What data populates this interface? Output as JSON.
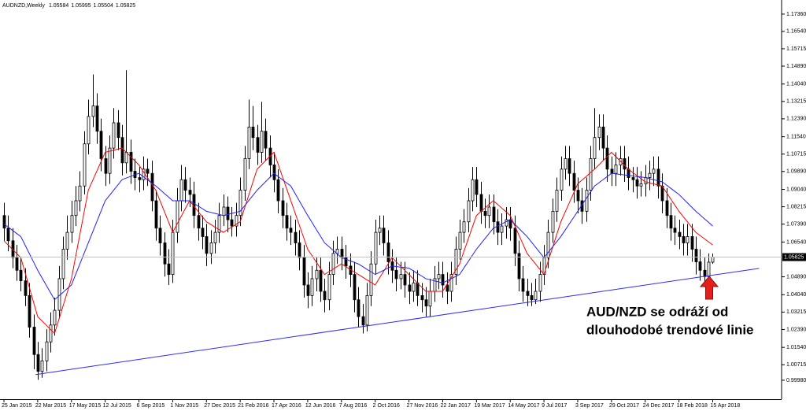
{
  "chart_data": {
    "type": "candlestick",
    "title": "AUDNZD,Weekly",
    "annotation": [
      "AUD/NZD se odráží od",
      "dlouhodobé trendové linie"
    ],
    "ylim": [
      0.9908,
      1.1803
    ],
    "yticks": [
      {
        "value": 1.1736,
        "label": "1.17360"
      },
      {
        "value": 1.1654,
        "label": "1.16540"
      },
      {
        "value": 1.15715,
        "label": "1.15715"
      },
      {
        "value": 1.1489,
        "label": "1.14890"
      },
      {
        "value": 1.1404,
        "label": "1.14040"
      },
      {
        "value": 1.13215,
        "label": "1.13215"
      },
      {
        "value": 1.1239,
        "label": "1.12390"
      },
      {
        "value": 1.1154,
        "label": "1.11540"
      },
      {
        "value": 1.10715,
        "label": "1.10715"
      },
      {
        "value": 1.0989,
        "label": "1.09890"
      },
      {
        "value": 1.0904,
        "label": "1.09040"
      },
      {
        "value": 1.08215,
        "label": "1.08215"
      },
      {
        "value": 1.0739,
        "label": "1.07390"
      },
      {
        "value": 1.0654,
        "label": "1.06540"
      },
      {
        "value": 1.0489,
        "label": "1.04890"
      },
      {
        "value": 1.0404,
        "label": "1.04040"
      },
      {
        "value": 1.03215,
        "label": "1.03215"
      },
      {
        "value": 1.0239,
        "label": "1.02390"
      },
      {
        "value": 1.0154,
        "label": "1.01540"
      },
      {
        "value": 1.00715,
        "label": "1.00715"
      },
      {
        "value": 0.9998,
        "label": "0.99980"
      }
    ],
    "categories": [
      "25 Jan 2015",
      null,
      null,
      null,
      null,
      null,
      null,
      null,
      "22 Mar 2015",
      null,
      null,
      null,
      null,
      null,
      null,
      null,
      "17 May 2015",
      null,
      null,
      null,
      null,
      null,
      null,
      null,
      "12 Jul 2015",
      null,
      null,
      null,
      null,
      null,
      null,
      null,
      "6 Sep 2015",
      null,
      null,
      null,
      null,
      null,
      null,
      null,
      "1 Nov 2015",
      null,
      null,
      null,
      null,
      null,
      null,
      null,
      "27 Dec 2015",
      null,
      null,
      null,
      null,
      null,
      null,
      null,
      "21 Feb 2016",
      null,
      null,
      null,
      null,
      null,
      null,
      null,
      "17 Apr 2016",
      null,
      null,
      null,
      null,
      null,
      null,
      null,
      "12 Jun 2016",
      null,
      null,
      null,
      null,
      null,
      null,
      null,
      "7 Aug 2016",
      null,
      null,
      null,
      null,
      null,
      null,
      null,
      "2 Oct 2016",
      null,
      null,
      null,
      null,
      null,
      null,
      null,
      "27 Nov 2016",
      null,
      null,
      null,
      null,
      null,
      null,
      null,
      "22 Jan 2017",
      null,
      null,
      null,
      null,
      null,
      null,
      null,
      "19 Mar 2017",
      null,
      null,
      null,
      null,
      null,
      null,
      null,
      "14 May 2017",
      null,
      null,
      null,
      null,
      null,
      null,
      null,
      "9 Jul 2017",
      null,
      null,
      null,
      null,
      null,
      null,
      null,
      "3 Sep 2017",
      null,
      null,
      null,
      null,
      null,
      null,
      null,
      "29 Oct 2017",
      null,
      null,
      null,
      null,
      null,
      null,
      null,
      "24 Dec 2017",
      null,
      null,
      null,
      null,
      null,
      null,
      null,
      "18 Feb 2018",
      null,
      null,
      null,
      null,
      null,
      null,
      null,
      "15 Apr 2018"
    ],
    "open": [
      1.078,
      1.072,
      1.066,
      1.058,
      1.052,
      1.047,
      1.04,
      1.025,
      1.012,
      1.004,
      1.009,
      1.018,
      1.026,
      1.033,
      1.048,
      1.062,
      1.07,
      1.078,
      1.085,
      1.092,
      1.112,
      1.125,
      1.13,
      1.118,
      1.105,
      1.098,
      1.11,
      1.122,
      1.115,
      1.103,
      1.108,
      1.099,
      1.096,
      1.095,
      1.1,
      1.098,
      1.085,
      1.072,
      1.065,
      1.055,
      1.05,
      1.07,
      1.085,
      1.095,
      1.09,
      1.088,
      1.078,
      1.072,
      1.068,
      1.06,
      1.065,
      1.07,
      1.078,
      1.082,
      1.076,
      1.073,
      1.078,
      1.09,
      1.105,
      1.12,
      1.115,
      1.108,
      1.118,
      1.11,
      1.102,
      1.095,
      1.085,
      1.078,
      1.072,
      1.07,
      1.065,
      1.058,
      1.045,
      1.04,
      1.048,
      1.052,
      1.042,
      1.038,
      1.05,
      1.06,
      1.062,
      1.058,
      1.054,
      1.05,
      1.038,
      1.03,
      1.026,
      1.04,
      1.055,
      1.07,
      1.072,
      1.065,
      1.056,
      1.052,
      1.048,
      1.05,
      1.045,
      1.042,
      1.046,
      1.04,
      1.038,
      1.035,
      1.042,
      1.048,
      1.05,
      1.045,
      1.042,
      1.05,
      1.062,
      1.07,
      1.075,
      1.085,
      1.095,
      1.088,
      1.08,
      1.078,
      1.082,
      1.075,
      1.07,
      1.073,
      1.076,
      1.072,
      1.06,
      1.048,
      1.042,
      1.04,
      1.038,
      1.042,
      1.05,
      1.058,
      1.07,
      1.08,
      1.09,
      1.1,
      1.105,
      1.098,
      1.09,
      1.085,
      1.08,
      1.09,
      1.105,
      1.115,
      1.12,
      1.11,
      1.1,
      1.098,
      1.102,
      1.105,
      1.1,
      1.096,
      1.095,
      1.092,
      1.093,
      1.096,
      1.098,
      1.1,
      1.092,
      1.085,
      1.078,
      1.072,
      1.07,
      1.068,
      1.065,
      1.068,
      1.062,
      1.056,
      1.052,
      1.049,
      1.05584
    ],
    "high": [
      1.084,
      1.078,
      1.072,
      1.064,
      1.058,
      1.053,
      1.046,
      1.031,
      1.018,
      1.015,
      1.024,
      1.032,
      1.039,
      1.054,
      1.068,
      1.078,
      1.085,
      1.092,
      1.099,
      1.118,
      1.133,
      1.145,
      1.136,
      1.124,
      1.111,
      1.116,
      1.129,
      1.128,
      1.121,
      1.147,
      1.114,
      1.105,
      1.101,
      1.106,
      1.105,
      1.104,
      1.09,
      1.078,
      1.07,
      1.062,
      1.076,
      1.091,
      1.102,
      1.101,
      1.096,
      1.094,
      1.084,
      1.078,
      1.074,
      1.071,
      1.076,
      1.084,
      1.088,
      1.087,
      1.082,
      1.084,
      1.096,
      1.111,
      1.133,
      1.13,
      1.121,
      1.132,
      1.124,
      1.116,
      1.108,
      1.1,
      1.091,
      1.084,
      1.078,
      1.076,
      1.071,
      1.064,
      1.051,
      1.054,
      1.058,
      1.058,
      1.048,
      1.056,
      1.066,
      1.068,
      1.068,
      1.064,
      1.06,
      1.056,
      1.044,
      1.036,
      1.046,
      1.061,
      1.076,
      1.078,
      1.078,
      1.071,
      1.062,
      1.058,
      1.056,
      1.056,
      1.051,
      1.052,
      1.052,
      1.046,
      1.044,
      1.048,
      1.054,
      1.056,
      1.056,
      1.051,
      1.056,
      1.068,
      1.076,
      1.081,
      1.091,
      1.101,
      1.101,
      1.094,
      1.086,
      1.088,
      1.088,
      1.081,
      1.079,
      1.082,
      1.082,
      1.078,
      1.066,
      1.054,
      1.048,
      1.046,
      1.048,
      1.056,
      1.064,
      1.076,
      1.086,
      1.096,
      1.106,
      1.111,
      1.111,
      1.104,
      1.096,
      1.091,
      1.096,
      1.111,
      1.129,
      1.126,
      1.126,
      1.116,
      1.106,
      1.108,
      1.111,
      1.111,
      1.106,
      1.101,
      1.101,
      1.099,
      1.102,
      1.104,
      1.106,
      1.106,
      1.098,
      1.091,
      1.084,
      1.078,
      1.076,
      1.074,
      1.074,
      1.074,
      1.068,
      1.062,
      1.058,
      1.06,
      1.05995
    ],
    "low": [
      1.066,
      1.061,
      1.053,
      1.047,
      1.042,
      1.035,
      1.02,
      1.005,
      1.0,
      1.001,
      1.004,
      1.013,
      1.021,
      1.029,
      1.043,
      1.057,
      1.065,
      1.073,
      1.08,
      1.088,
      1.107,
      1.12,
      1.112,
      1.099,
      1.092,
      1.093,
      1.105,
      1.109,
      1.097,
      1.098,
      1.093,
      1.09,
      1.089,
      1.09,
      1.092,
      1.08,
      1.066,
      1.059,
      1.049,
      1.045,
      1.046,
      1.065,
      1.08,
      1.084,
      1.082,
      1.072,
      1.066,
      1.062,
      1.054,
      1.055,
      1.06,
      1.065,
      1.073,
      1.07,
      1.068,
      1.068,
      1.073,
      1.085,
      1.1,
      1.109,
      1.102,
      1.103,
      1.104,
      1.096,
      1.089,
      1.079,
      1.072,
      1.066,
      1.064,
      1.059,
      1.052,
      1.039,
      1.034,
      1.035,
      1.042,
      1.037,
      1.032,
      1.033,
      1.045,
      1.055,
      1.052,
      1.048,
      1.044,
      1.032,
      1.025,
      1.022,
      1.023,
      1.035,
      1.05,
      1.064,
      1.059,
      1.05,
      1.046,
      1.042,
      1.043,
      1.039,
      1.036,
      1.037,
      1.035,
      1.032,
      1.03,
      1.03,
      1.037,
      1.043,
      1.039,
      1.036,
      1.037,
      1.045,
      1.057,
      1.065,
      1.07,
      1.08,
      1.082,
      1.074,
      1.072,
      1.072,
      1.069,
      1.064,
      1.064,
      1.067,
      1.066,
      1.054,
      1.042,
      1.037,
      1.035,
      1.035,
      1.036,
      1.037,
      1.045,
      1.053,
      1.065,
      1.075,
      1.085,
      1.095,
      1.092,
      1.084,
      1.079,
      1.074,
      1.075,
      1.085,
      1.1,
      1.109,
      1.104,
      1.094,
      1.092,
      1.092,
      1.097,
      1.094,
      1.09,
      1.089,
      1.086,
      1.087,
      1.087,
      1.09,
      1.092,
      1.086,
      1.079,
      1.072,
      1.066,
      1.064,
      1.062,
      1.059,
      1.059,
      1.056,
      1.05,
      1.047,
      1.044,
      1.048,
      1.05504
    ],
    "close": [
      1.072,
      1.066,
      1.058,
      1.052,
      1.047,
      1.04,
      1.025,
      1.012,
      1.004,
      1.009,
      1.018,
      1.026,
      1.033,
      1.048,
      1.062,
      1.07,
      1.078,
      1.085,
      1.092,
      1.112,
      1.125,
      1.13,
      1.118,
      1.105,
      1.098,
      1.11,
      1.122,
      1.115,
      1.103,
      1.108,
      1.099,
      1.096,
      1.095,
      1.1,
      1.098,
      1.085,
      1.072,
      1.065,
      1.055,
      1.05,
      1.07,
      1.085,
      1.095,
      1.09,
      1.088,
      1.078,
      1.072,
      1.068,
      1.06,
      1.065,
      1.07,
      1.078,
      1.082,
      1.076,
      1.073,
      1.078,
      1.09,
      1.105,
      1.12,
      1.115,
      1.108,
      1.118,
      1.11,
      1.102,
      1.095,
      1.085,
      1.078,
      1.072,
      1.07,
      1.065,
      1.058,
      1.045,
      1.04,
      1.048,
      1.052,
      1.042,
      1.038,
      1.05,
      1.06,
      1.062,
      1.058,
      1.054,
      1.05,
      1.038,
      1.03,
      1.026,
      1.04,
      1.055,
      1.07,
      1.072,
      1.065,
      1.056,
      1.052,
      1.048,
      1.05,
      1.045,
      1.042,
      1.046,
      1.04,
      1.038,
      1.035,
      1.042,
      1.048,
      1.05,
      1.045,
      1.042,
      1.05,
      1.062,
      1.07,
      1.075,
      1.085,
      1.095,
      1.088,
      1.08,
      1.078,
      1.082,
      1.075,
      1.07,
      1.073,
      1.076,
      1.072,
      1.06,
      1.048,
      1.042,
      1.04,
      1.038,
      1.042,
      1.05,
      1.058,
      1.07,
      1.08,
      1.09,
      1.1,
      1.105,
      1.098,
      1.09,
      1.085,
      1.08,
      1.09,
      1.105,
      1.115,
      1.12,
      1.11,
      1.1,
      1.098,
      1.102,
      1.105,
      1.1,
      1.096,
      1.095,
      1.092,
      1.093,
      1.096,
      1.098,
      1.1,
      1.092,
      1.085,
      1.078,
      1.072,
      1.07,
      1.068,
      1.065,
      1.068,
      1.062,
      1.056,
      1.052,
      1.049,
      1.05584,
      1.05825
    ],
    "series": [
      {
        "color": "#ff0000",
        "values": [
          1.066,
          1.064,
          1.062,
          1.06,
          1.058,
          1.051,
          1.044,
          1.037,
          1.03,
          1.028,
          1.026,
          1.024,
          1.022,
          1.0285,
          1.035,
          1.0415,
          1.048,
          1.0585,
          1.069,
          1.0795,
          1.09,
          1.0945,
          1.099,
          1.1035,
          1.108,
          1.1085,
          1.109,
          1.1095,
          1.11,
          1.108,
          1.106,
          1.104,
          1.102,
          1.099,
          1.096,
          1.093,
          1.09,
          1.085,
          1.08,
          1.075,
          1.07,
          1.0738,
          1.0775,
          1.0813,
          1.085,
          1.0825,
          1.08,
          1.0775,
          1.075,
          1.0738,
          1.0725,
          1.0713,
          1.07,
          1.0713,
          1.0725,
          1.0738,
          1.075,
          1.0813,
          1.0875,
          1.0938,
          1.1,
          1.102,
          1.104,
          1.106,
          1.108,
          1.1023,
          1.0965,
          1.0908,
          1.085,
          1.0793,
          1.0735,
          1.0678,
          1.062,
          1.059,
          1.056,
          1.053,
          1.05,
          1.0513,
          1.0525,
          1.0538,
          1.055,
          1.0538,
          1.0525,
          1.0513,
          1.05,
          1.0488,
          1.0475,
          1.0463,
          1.045,
          1.0483,
          1.0515,
          1.0548,
          1.058,
          1.056,
          1.054,
          1.052,
          1.05,
          1.048,
          1.046,
          1.044,
          1.042,
          1.042,
          1.042,
          1.042,
          1.042,
          1.0453,
          1.0485,
          1.0518,
          1.055,
          1.0608,
          1.0665,
          1.0723,
          1.078,
          1.0798,
          1.0815,
          1.0833,
          1.085,
          1.0833,
          1.0815,
          1.0798,
          1.078,
          1.0735,
          1.069,
          1.0645,
          1.06,
          1.0575,
          1.055,
          1.0525,
          1.05,
          1.0563,
          1.0625,
          1.0688,
          1.075,
          1.0795,
          1.084,
          1.0885,
          1.093,
          1.0948,
          1.0965,
          1.0983,
          1.1,
          1.102,
          1.104,
          1.106,
          1.108,
          1.106,
          1.104,
          1.102,
          1.1,
          1.0985,
          1.097,
          1.0955,
          1.094,
          1.0935,
          1.093,
          1.0925,
          1.092,
          1.089,
          1.086,
          1.083,
          1.08,
          1.0775,
          1.075,
          1.0725,
          1.07,
          1.0685,
          1.067,
          1.0655,
          1.064
        ]
      },
      {
        "color": "#2020ff",
        "values": [
          1.074,
          1.0725,
          1.071,
          1.0695,
          1.068,
          1.064,
          1.06,
          1.056,
          1.052,
          1.0485,
          1.045,
          1.0415,
          1.038,
          1.0398,
          1.0415,
          1.0433,
          1.045,
          1.05,
          1.055,
          1.06,
          1.065,
          1.07,
          1.075,
          1.08,
          1.085,
          1.0875,
          1.09,
          1.0925,
          1.095,
          1.0958,
          1.0965,
          1.0973,
          1.098,
          1.0965,
          1.095,
          1.0935,
          1.092,
          1.0903,
          1.0885,
          1.0868,
          1.085,
          1.085,
          1.085,
          1.085,
          1.085,
          1.0838,
          1.0825,
          1.0813,
          1.08,
          1.0795,
          1.079,
          1.0785,
          1.078,
          1.0785,
          1.079,
          1.0795,
          1.08,
          1.0825,
          1.085,
          1.0875,
          1.09,
          1.092,
          1.094,
          1.096,
          1.098,
          1.0965,
          1.095,
          1.0935,
          1.092,
          1.0885,
          1.085,
          1.0815,
          1.078,
          1.0748,
          1.0715,
          1.0683,
          1.065,
          1.0633,
          1.0615,
          1.0598,
          1.058,
          1.0573,
          1.0565,
          1.0558,
          1.055,
          1.0538,
          1.0525,
          1.0513,
          1.05,
          1.051,
          1.052,
          1.053,
          1.054,
          1.0538,
          1.0535,
          1.0533,
          1.053,
          1.0518,
          1.0505,
          1.0493,
          1.048,
          1.0475,
          1.047,
          1.0465,
          1.046,
          1.047,
          1.048,
          1.049,
          1.05,
          1.053,
          1.056,
          1.059,
          1.062,
          1.0645,
          1.067,
          1.0695,
          1.072,
          1.073,
          1.074,
          1.075,
          1.076,
          1.074,
          1.072,
          1.07,
          1.068,
          1.0655,
          1.063,
          1.0605,
          1.058,
          1.0605,
          1.063,
          1.0655,
          1.068,
          1.071,
          1.074,
          1.077,
          1.08,
          1.083,
          1.086,
          1.089,
          1.092,
          1.0935,
          1.095,
          1.0965,
          1.098,
          1.0978,
          1.0975,
          1.0973,
          1.097,
          1.0968,
          1.0965,
          1.0963,
          1.096,
          1.0955,
          1.095,
          1.0945,
          1.094,
          1.0925,
          1.091,
          1.0895,
          1.088,
          1.086,
          1.084,
          1.082,
          1.08,
          1.0783,
          1.0765,
          1.0748,
          1.073
        ]
      }
    ],
    "trendline": {
      "color": "#2b2bff",
      "start": [
        7.5,
        1.0025
      ],
      "end": [
        179,
        1.0529
      ]
    },
    "bull_color": "#ffffff",
    "bear_color": "#000000",
    "grid": false
  }
}
